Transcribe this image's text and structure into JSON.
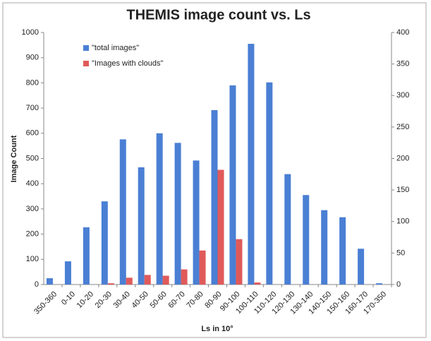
{
  "chart_data": {
    "type": "bar",
    "title": "THEMIS image count vs. Ls",
    "x_label": "Ls in 10°",
    "y_label": "Image Count",
    "categories": [
      "350-360",
      "0-10",
      "10-20",
      "20-30",
      "30-40",
      "40-50",
      "50-60",
      "60-70",
      "70-80",
      "80-90",
      "90-100",
      "100-110",
      "110-120",
      "120-130",
      "130-140",
      "140-150",
      "150-160",
      "160-170",
      "170-350"
    ],
    "series": [
      {
        "name": "\"total images\"",
        "color": "#4a7fd4",
        "values": [
          25,
          92,
          227,
          330,
          576,
          465,
          600,
          562,
          492,
          692,
          790,
          955,
          802,
          438,
          355,
          295,
          267,
          142,
          5
        ]
      },
      {
        "name": "\"Images with clouds\"",
        "color": "#e05a5a",
        "values": [
          0,
          0,
          0,
          5,
          27,
          38,
          35,
          60,
          135,
          455,
          180,
          8,
          0,
          0,
          0,
          0,
          0,
          0,
          0
        ]
      }
    ],
    "ylim": [
      0,
      1000
    ],
    "yticks": [
      0,
      100,
      200,
      300,
      400,
      500,
      600,
      700,
      800,
      900,
      1000
    ],
    "y2lim": [
      0,
      400
    ],
    "y2ticks": [
      0,
      50,
      100,
      150,
      200,
      250,
      300,
      350,
      400
    ],
    "grid": false,
    "legend": "top-left"
  }
}
